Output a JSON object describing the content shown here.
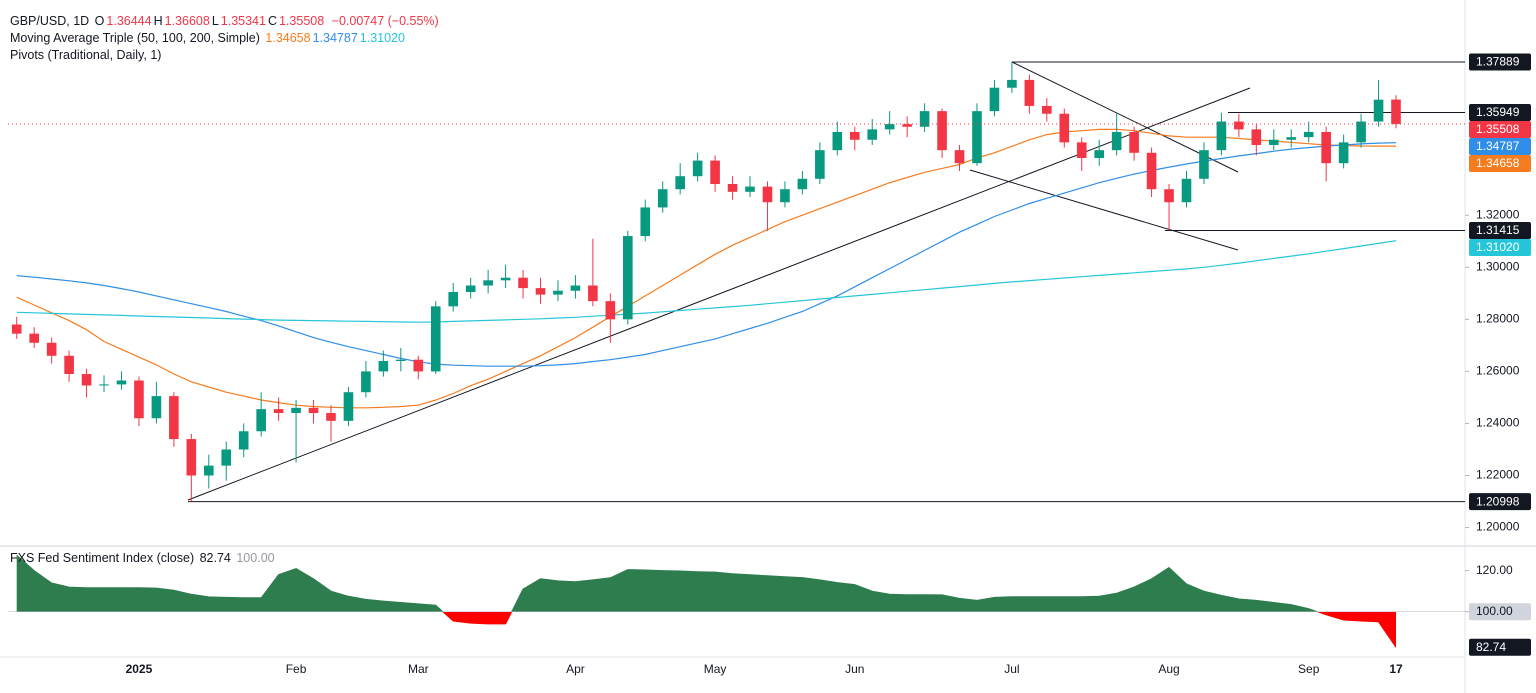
{
  "chart_data": [
    {
      "type": "candlestick",
      "title": "GBP/USD, 1D",
      "legend_ohlc": [
        {
          "key": "O",
          "text": "1.36444"
        },
        {
          "key": "H",
          "text": "1.36608"
        },
        {
          "key": "L",
          "text": "1.35341"
        },
        {
          "key": "C",
          "text": "1.35508"
        }
      ],
      "change": "−0.00747 (−0.55%)",
      "indicators": [
        "Moving Average Triple (50, 100, 200, Simple)",
        "Pivots (Traditional, Daily, 1)"
      ],
      "colors": {
        "up": "#089981",
        "down": "#f23645"
      },
      "categories": [
        null,
        null,
        null,
        null,
        null,
        null,
        null,
        "2025",
        null,
        null,
        null,
        null,
        null,
        null,
        null,
        null,
        "Feb",
        null,
        null,
        null,
        null,
        null,
        null,
        "Mar",
        null,
        null,
        null,
        null,
        null,
        null,
        null,
        null,
        "Apr",
        null,
        null,
        null,
        null,
        null,
        null,
        null,
        "May",
        null,
        null,
        null,
        null,
        null,
        null,
        null,
        "Jun",
        null,
        null,
        null,
        null,
        null,
        null,
        null,
        null,
        "Jul",
        null,
        null,
        null,
        null,
        null,
        null,
        null,
        null,
        "Aug",
        null,
        null,
        null,
        null,
        null,
        null,
        null,
        "Sep",
        null,
        null,
        null,
        null,
        "17"
      ],
      "ohlc": [
        [
          1.278,
          1.281,
          1.2725,
          1.2745
        ],
        [
          1.2745,
          1.277,
          1.269,
          1.271
        ],
        [
          1.271,
          1.273,
          1.263,
          1.266
        ],
        [
          1.266,
          1.268,
          1.256,
          1.259
        ],
        [
          1.259,
          1.261,
          1.25,
          1.2546
        ],
        [
          1.2546,
          1.2585,
          1.252,
          1.255
        ],
        [
          1.255,
          1.26,
          1.253,
          1.2565
        ],
        [
          1.2565,
          1.258,
          1.239,
          1.242
        ],
        [
          1.242,
          1.256,
          1.24,
          1.2505
        ],
        [
          1.2505,
          1.252,
          1.231,
          1.234
        ],
        [
          1.234,
          1.236,
          1.21,
          1.22
        ],
        [
          1.22,
          1.228,
          1.215,
          1.2238
        ],
        [
          1.2238,
          1.233,
          1.218,
          1.23
        ],
        [
          1.23,
          1.24,
          1.227,
          1.237
        ],
        [
          1.237,
          1.252,
          1.235,
          1.2455
        ],
        [
          1.2455,
          1.25,
          1.241,
          1.244
        ],
        [
          1.244,
          1.249,
          1.225,
          1.246
        ],
        [
          1.246,
          1.249,
          1.24,
          1.244
        ],
        [
          1.244,
          1.247,
          1.233,
          1.241
        ],
        [
          1.241,
          1.254,
          1.239,
          1.252
        ],
        [
          1.252,
          1.264,
          1.25,
          1.26
        ],
        [
          1.26,
          1.268,
          1.258,
          1.264
        ],
        [
          1.264,
          1.269,
          1.26,
          1.2645
        ],
        [
          1.2645,
          1.266,
          1.257,
          1.26
        ],
        [
          1.26,
          1.287,
          1.259,
          1.285
        ],
        [
          1.285,
          1.294,
          1.283,
          1.2905
        ],
        [
          1.2905,
          1.296,
          1.288,
          1.293
        ],
        [
          1.293,
          1.299,
          1.29,
          1.295
        ],
        [
          1.295,
          1.301,
          1.292,
          1.296
        ],
        [
          1.296,
          1.299,
          1.288,
          1.292
        ],
        [
          1.292,
          1.296,
          1.286,
          1.2895
        ],
        [
          1.2895,
          1.295,
          1.287,
          1.291
        ],
        [
          1.291,
          1.297,
          1.288,
          1.293
        ],
        [
          1.293,
          1.311,
          1.285,
          1.287
        ],
        [
          1.287,
          1.29,
          1.271,
          1.28
        ],
        [
          1.28,
          1.314,
          1.278,
          1.312
        ],
        [
          1.312,
          1.326,
          1.31,
          1.323
        ],
        [
          1.323,
          1.333,
          1.321,
          1.33
        ],
        [
          1.33,
          1.34,
          1.328,
          1.335
        ],
        [
          1.335,
          1.344,
          1.333,
          1.341
        ],
        [
          1.341,
          1.343,
          1.329,
          1.332
        ],
        [
          1.332,
          1.335,
          1.326,
          1.329
        ],
        [
          1.329,
          1.335,
          1.327,
          1.331
        ],
        [
          1.331,
          1.333,
          1.314,
          1.325
        ],
        [
          1.325,
          1.333,
          1.323,
          1.33
        ],
        [
          1.33,
          1.337,
          1.328,
          1.334
        ],
        [
          1.334,
          1.348,
          1.332,
          1.345
        ],
        [
          1.345,
          1.356,
          1.343,
          1.352
        ],
        [
          1.352,
          1.354,
          1.345,
          1.349
        ],
        [
          1.349,
          1.357,
          1.347,
          1.353
        ],
        [
          1.353,
          1.36,
          1.351,
          1.355
        ],
        [
          1.355,
          1.358,
          1.35,
          1.354
        ],
        [
          1.354,
          1.363,
          1.352,
          1.36
        ],
        [
          1.36,
          1.361,
          1.342,
          1.345
        ],
        [
          1.345,
          1.347,
          1.337,
          1.34
        ],
        [
          1.34,
          1.363,
          1.339,
          1.36
        ],
        [
          1.36,
          1.372,
          1.358,
          1.369
        ],
        [
          1.369,
          1.3789,
          1.367,
          1.372
        ],
        [
          1.372,
          1.374,
          1.359,
          1.362
        ],
        [
          1.362,
          1.365,
          1.356,
          1.359
        ],
        [
          1.359,
          1.361,
          1.346,
          1.348
        ],
        [
          1.348,
          1.35,
          1.337,
          1.342
        ],
        [
          1.342,
          1.349,
          1.339,
          1.345
        ],
        [
          1.345,
          1.359,
          1.343,
          1.352
        ],
        [
          1.352,
          1.354,
          1.341,
          1.344
        ],
        [
          1.344,
          1.346,
          1.327,
          1.33
        ],
        [
          1.33,
          1.332,
          1.3141,
          1.325
        ],
        [
          1.325,
          1.337,
          1.323,
          1.334
        ],
        [
          1.334,
          1.348,
          1.332,
          1.345
        ],
        [
          1.345,
          1.3594,
          1.343,
          1.356
        ],
        [
          1.356,
          1.359,
          1.35,
          1.353
        ],
        [
          1.353,
          1.355,
          1.343,
          1.347
        ],
        [
          1.347,
          1.353,
          1.345,
          1.349
        ],
        [
          1.349,
          1.353,
          1.346,
          1.35
        ],
        [
          1.35,
          1.356,
          1.348,
          1.352
        ],
        [
          1.352,
          1.354,
          1.333,
          1.34
        ],
        [
          1.34,
          1.351,
          1.338,
          1.348
        ],
        [
          1.348,
          1.359,
          1.346,
          1.356
        ],
        [
          1.356,
          1.372,
          1.354,
          1.3644
        ],
        [
          1.36444,
          1.36608,
          1.35341,
          1.35508
        ]
      ],
      "series": [
        {
          "color": "#f57c1f",
          "tag": {
            "value": 1.34658,
            "label": "1.34658"
          },
          "values": [
            1.2885,
            1.2855,
            1.2825,
            1.2795,
            1.276,
            1.2715,
            1.2685,
            1.2655,
            1.2625,
            1.259,
            1.256,
            1.254,
            1.252,
            1.2505,
            1.249,
            1.248,
            1.247,
            1.2465,
            1.2462,
            1.246,
            1.246,
            1.2462,
            1.2465,
            1.247,
            1.249,
            1.2515,
            1.2545,
            1.257,
            1.26,
            1.263,
            1.266,
            1.2695,
            1.273,
            1.277,
            1.281,
            1.285,
            1.289,
            1.293,
            1.297,
            1.301,
            1.305,
            1.3085,
            1.3115,
            1.3145,
            1.3175,
            1.32,
            1.3225,
            1.325,
            1.3275,
            1.33,
            1.3325,
            1.3345,
            1.3365,
            1.338,
            1.3395,
            1.342,
            1.344,
            1.3465,
            1.349,
            1.351,
            1.352,
            1.3525,
            1.353,
            1.353,
            1.3525,
            1.3515,
            1.3505,
            1.35,
            1.35,
            1.35,
            1.3495,
            1.349,
            1.3485,
            1.348,
            1.3475,
            1.347,
            1.3468,
            1.3466,
            1.34655,
            1.34658
          ]
        },
        {
          "color": "#2f8fe8",
          "tag": {
            "value": 1.34787,
            "label": "1.34787"
          },
          "values": [
            1.2968,
            1.2962,
            1.2955,
            1.2948,
            1.294,
            1.293,
            1.2918,
            1.2905,
            1.289,
            1.2875,
            1.286,
            1.2845,
            1.283,
            1.2812,
            1.2795,
            1.2775,
            1.2752,
            1.273,
            1.2712,
            1.2695,
            1.268,
            1.2665,
            1.265,
            1.2637,
            1.2628,
            1.2624,
            1.2622,
            1.262,
            1.262,
            1.262,
            1.2622,
            1.2625,
            1.263,
            1.2638,
            1.2645,
            1.2655,
            1.2665,
            1.268,
            1.2695,
            1.271,
            1.2725,
            1.2745,
            1.2765,
            1.2785,
            1.2808,
            1.283,
            1.286,
            1.289,
            1.2925,
            1.296,
            1.2995,
            1.303,
            1.3065,
            1.31,
            1.3135,
            1.3165,
            1.3195,
            1.322,
            1.3245,
            1.3265,
            1.3285,
            1.3305,
            1.3325,
            1.3342,
            1.3358,
            1.3372,
            1.3385,
            1.3397,
            1.3408,
            1.3418,
            1.3428,
            1.3437,
            1.3446,
            1.3454,
            1.346,
            1.3466,
            1.347,
            1.3474,
            1.3477,
            1.34787
          ]
        },
        {
          "color": "#26c6da",
          "tag": {
            "value": 1.3102,
            "label": "1.31020"
          },
          "values": [
            1.2827,
            1.2825,
            1.2823,
            1.2821,
            1.2819,
            1.2817,
            1.2815,
            1.2813,
            1.2811,
            1.2809,
            1.2807,
            1.2805,
            1.2803,
            1.2801,
            1.2799,
            1.2797,
            1.2796,
            1.2795,
            1.2794,
            1.2793,
            1.2792,
            1.2791,
            1.279,
            1.2789,
            1.279,
            1.2792,
            1.2794,
            1.2796,
            1.2798,
            1.28,
            1.2802,
            1.2805,
            1.2808,
            1.2812,
            1.2816,
            1.282,
            1.2824,
            1.2829,
            1.2834,
            1.2839,
            1.2844,
            1.2849,
            1.2854,
            1.286,
            1.2866,
            1.2872,
            1.2878,
            1.2884,
            1.289,
            1.2896,
            1.2902,
            1.2908,
            1.2914,
            1.292,
            1.2926,
            1.2932,
            1.2938,
            1.2944,
            1.2949,
            1.2954,
            1.2959,
            1.2964,
            1.2969,
            1.2974,
            1.2979,
            1.2984,
            1.2989,
            1.2994,
            1.3,
            1.3008,
            1.3016,
            1.3025,
            1.3034,
            1.3043,
            1.3052,
            1.3062,
            1.3072,
            1.3082,
            1.3092,
            1.3102
          ]
        }
      ],
      "last": {
        "value": 1.35508,
        "label": "1.35508"
      },
      "levels": [
        {
          "value": 1.37889,
          "label": "1.37889"
        },
        {
          "value": 1.35949,
          "label": "1.35949"
        },
        {
          "value": 1.31415,
          "label": "1.31415"
        },
        {
          "value": 1.20998,
          "label": "1.20998"
        }
      ],
      "ylim": [
        1.1933,
        1.4027
      ],
      "yticks": [
        {
          "value": 1.32,
          "label": "1.32000"
        },
        {
          "value": 1.3,
          "label": "1.30000"
        },
        {
          "value": 1.28,
          "label": "1.28000"
        },
        {
          "value": 1.26,
          "label": "1.26000"
        },
        {
          "value": 1.24,
          "label": "1.24000"
        },
        {
          "value": 1.22,
          "label": "1.22000"
        },
        {
          "value": 1.2,
          "label": "1.20000"
        }
      ]
    },
    {
      "type": "area",
      "title": "FXS Fed Sentiment Index (close)",
      "legend_values": [
        "82.74",
        "100.00"
      ],
      "colors": {
        "above": "#2e7d4f",
        "below": "#ff0000"
      },
      "baseline": 100,
      "values": [
        127.5,
        120.0,
        114.0,
        112.0,
        111.7,
        111.7,
        111.7,
        111.7,
        111.5,
        110.5,
        108.5,
        107.2,
        107.0,
        106.8,
        106.8,
        118.0,
        121.0,
        116.0,
        110.0,
        107.5,
        106.0,
        105.2,
        104.5,
        103.8,
        103.2,
        95.5,
        94.5,
        94.1,
        94.1,
        111.0,
        116.0,
        115.0,
        114.6,
        115.5,
        116.5,
        120.5,
        120.3,
        120.0,
        119.8,
        119.5,
        119.3,
        118.5,
        118.0,
        117.5,
        117.0,
        116.6,
        115.5,
        114.2,
        113.2,
        110.0,
        108.5,
        108.3,
        108.3,
        108.2,
        106.5,
        105.5,
        107.0,
        107.3,
        107.3,
        107.3,
        107.3,
        107.3,
        107.5,
        109.0,
        112.0,
        116.0,
        121.5,
        113.5,
        110.0,
        108.0,
        106.2,
        105.5,
        104.5,
        103.5,
        101.5,
        98.5,
        96.0,
        95.5,
        95.1,
        82.74
      ],
      "last": {
        "value": 82.74,
        "label": "82.74"
      },
      "ylim": [
        78,
        131
      ],
      "yticks": [
        {
          "value": 120,
          "label": "120.00"
        },
        {
          "value": 100,
          "label": "100.00"
        }
      ]
    }
  ]
}
